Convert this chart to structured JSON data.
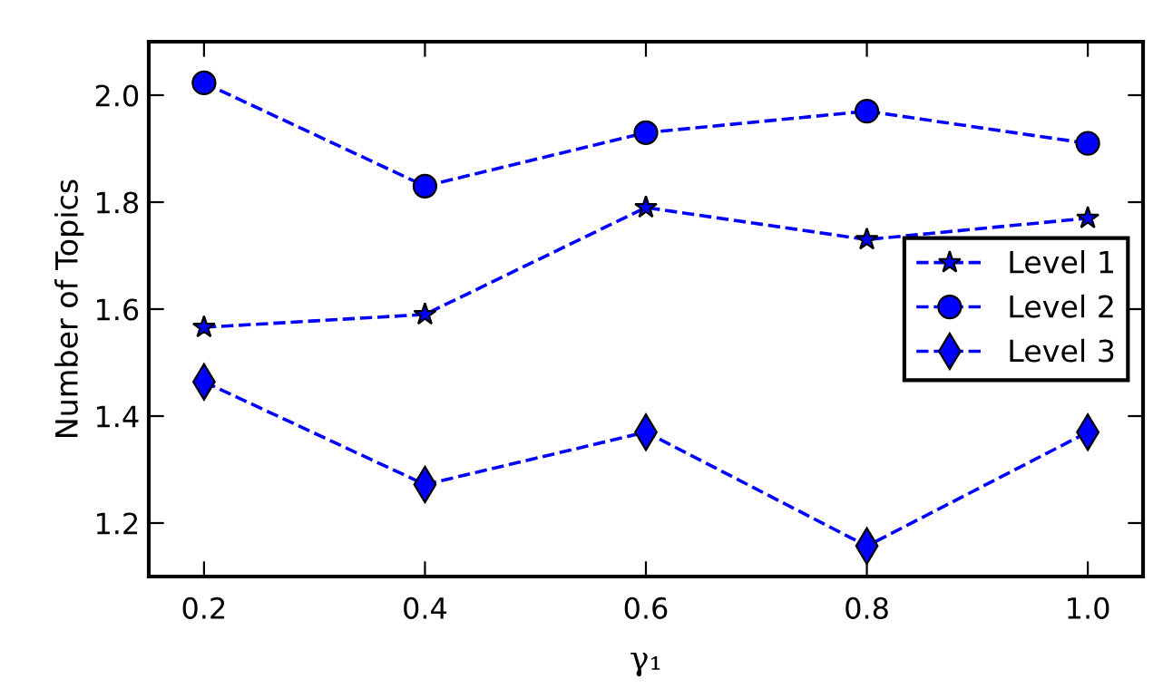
{
  "chart_data": {
    "type": "line",
    "xlabel": "γ₁",
    "ylabel": "Number of Topics",
    "x": [
      0.2,
      0.4,
      0.6,
      0.8,
      1.0
    ],
    "series": [
      {
        "name": "Level 1",
        "color": "#0000ff",
        "marker": "star",
        "values": [
          1.566,
          1.59,
          1.79,
          1.73,
          1.77
        ]
      },
      {
        "name": "Level 2",
        "color": "#0000ff",
        "marker": "circle",
        "values": [
          2.023,
          1.83,
          1.93,
          1.97,
          1.91
        ]
      },
      {
        "name": "Level 3",
        "color": "#0000ff",
        "marker": "diamond",
        "values": [
          1.464,
          1.272,
          1.37,
          1.157,
          1.37
        ]
      }
    ],
    "line_style": "dashed",
    "xlim": [
      0.15,
      1.05
    ],
    "ylim": [
      1.1,
      2.1
    ],
    "xticks": [
      {
        "value": 0.2,
        "label": "0.2"
      },
      {
        "value": 0.4,
        "label": "0.4"
      },
      {
        "value": 0.6,
        "label": "0.6"
      },
      {
        "value": 0.8,
        "label": "0.8"
      },
      {
        "value": 1.0,
        "label": "1.0"
      }
    ],
    "yticks": [
      {
        "value": 1.2,
        "label": "1.2"
      },
      {
        "value": 1.4,
        "label": "1.4"
      },
      {
        "value": 1.6,
        "label": "1.6"
      },
      {
        "value": 1.8,
        "label": "1.8"
      },
      {
        "value": 2.0,
        "label": "2.0"
      }
    ],
    "grid": false,
    "legend": "center right"
  }
}
